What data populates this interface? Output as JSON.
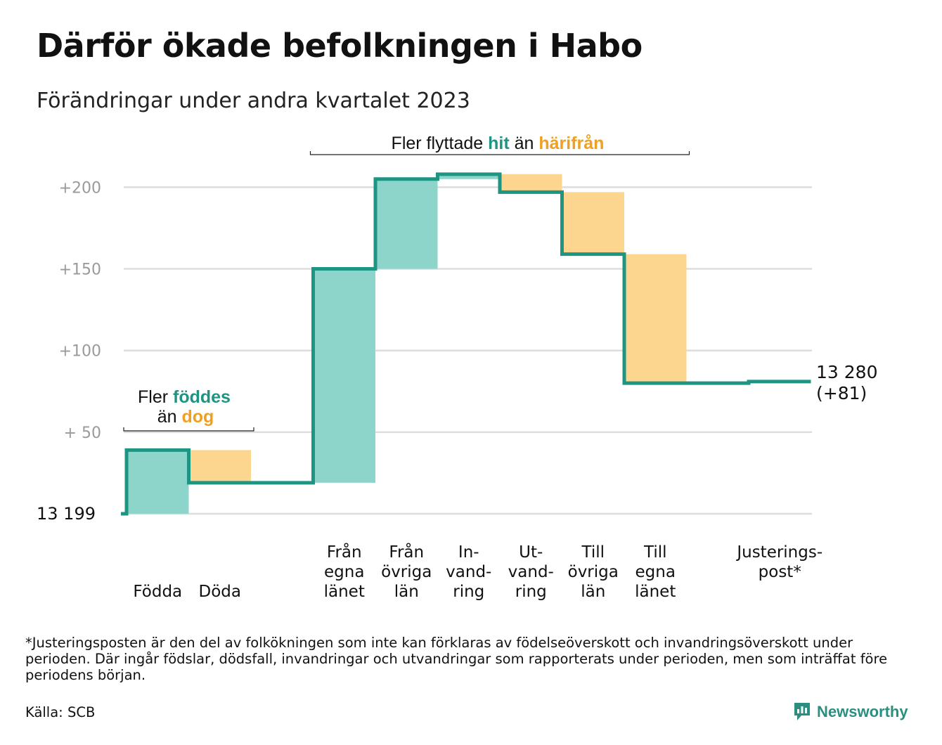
{
  "title": "Därför ökade befolkningen i Habo",
  "subtitle": "Förändringar under andra kvartalet 2023",
  "footnote": "*Justeringsposten är den del av folkökningen som inte kan förklaras av födelseöverskott och invandringsöverskott under perioden. Där ingår födslar, dödsfall, invandringar och utvandringar som rapporterats under perioden, men som inträffat före periodens början.",
  "source": "Källa: SCB",
  "brand": {
    "name": "Newsworthy",
    "icon": "newsworthy-logo-icon"
  },
  "colors": {
    "increase": "#8dd4ca",
    "decrease": "#fcd68e",
    "line": "#1e9482",
    "orange_text": "#f0a020",
    "grid": "#dddddd",
    "tick": "#9a9a9a"
  },
  "chart_data": {
    "type": "waterfall",
    "base_value": 13199,
    "base_label": "13  199",
    "end_value": 13280,
    "end_label": [
      "13 280",
      "(+81)"
    ],
    "yticks": [
      {
        "value": 200,
        "label": "+200"
      },
      {
        "value": 150,
        "label": "+150"
      },
      {
        "value": 100,
        "label": "+100"
      },
      {
        "value": 50,
        "label": "+  50"
      },
      {
        "value": 0,
        "label": ""
      }
    ],
    "ylim": [
      0,
      210
    ],
    "grid": true,
    "steps": [
      {
        "label": [
          "",
          "",
          "Födda"
        ],
        "change": 39
      },
      {
        "label": [
          "",
          "",
          "Döda"
        ],
        "change": -20
      },
      {
        "label": [
          "",
          "",
          ""
        ],
        "change": 0
      },
      {
        "label": [
          "Från",
          "egna",
          "länet"
        ],
        "change": 131
      },
      {
        "label": [
          "Från",
          "övriga",
          "län"
        ],
        "change": 55
      },
      {
        "label": [
          "In-",
          "vand-",
          "ring"
        ],
        "change": 3
      },
      {
        "label": [
          "Ut-",
          "vand-",
          "ring"
        ],
        "change": -11
      },
      {
        "label": [
          "Till",
          "övriga",
          "län"
        ],
        "change": -38
      },
      {
        "label": [
          "Till",
          "egna",
          "länet"
        ],
        "change": -79
      },
      {
        "label": [
          "",
          "",
          ""
        ],
        "change": 0
      },
      {
        "label": [
          "Justerings-",
          "post*",
          ""
        ],
        "change": 1
      }
    ],
    "annotations": [
      {
        "text_parts": [
          "Fler ",
          "föddes"
        ],
        "line2_parts": [
          "än ",
          "dog"
        ],
        "from_step": 0,
        "to_step": 1
      },
      {
        "text_parts": [
          "Fler flyttade ",
          "hit",
          " än ",
          "härifrån"
        ],
        "from_step": 3,
        "to_step": 8
      }
    ]
  }
}
